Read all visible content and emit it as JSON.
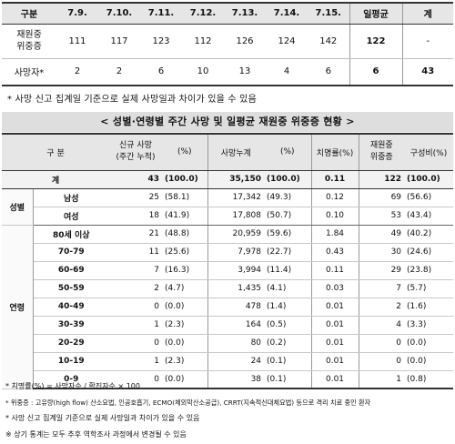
{
  "top_table": {
    "header": [
      "구분",
      "7.9.",
      "7.10.",
      "7.11.",
      "7.12.",
      "7.13.",
      "7.14.",
      "7.15.",
      "일평균",
      "계"
    ],
    "rows": [
      {
        "label": "재원중\n위중증",
        "values": [
          "111",
          "117",
          "123",
          "112",
          "126",
          "124",
          "142"
        ],
        "avg": "122",
        "total": "-"
      },
      {
        "label": "사망자*",
        "values": [
          "2",
          "2",
          "6",
          "10",
          "13",
          "4",
          "6"
        ],
        "avg": "6",
        "total": "43"
      }
    ]
  },
  "note1": "* 사망 신고 집계일 기준으로 실제 사망일과 차이가 있을 수 있음",
  "title": "< 성별·연령별 주간 사망 및 일평균 재원중 위중증 현황 >",
  "main_table": {
    "header": {
      "category": "구 분",
      "new_deaths": "신규 사망\n(주간 누적)",
      "new_deaths_pct": "(%)",
      "cum_deaths": "사망누계",
      "cum_deaths_pct": "(%)",
      "cfr": "치명률(%)",
      "severe": "재원중\n위중증",
      "composition": "구성비(%)"
    },
    "total": {
      "label": "계",
      "new": "43",
      "new_pct": "(100.0)",
      "cum": "35,150",
      "cum_pct": "(100.0)",
      "cfr": "0.11",
      "severe": "122",
      "comp": "(100.0)"
    },
    "sex_group": "성별",
    "sex": [
      {
        "label": "남성",
        "new": "25",
        "new_pct": "(58.1)",
        "cum": "17,342",
        "cum_pct": "(49.3)",
        "cfr": "0.12",
        "severe": "69",
        "comp": "(56.6)"
      },
      {
        "label": "여성",
        "new": "18",
        "new_pct": "(41.9)",
        "cum": "17,808",
        "cum_pct": "(50.7)",
        "cfr": "0.10",
        "severe": "53",
        "comp": "(43.4)"
      }
    ],
    "age_group": "연령",
    "age": [
      {
        "label": "80세 이상",
        "new": "21",
        "new_pct": "(48.8)",
        "cum": "20,959",
        "cum_pct": "(59.6)",
        "cfr": "1.84",
        "severe": "49",
        "comp": "(40.2)"
      },
      {
        "label": "70-79",
        "new": "11",
        "new_pct": "(25.6)",
        "cum": "7,978",
        "cum_pct": "(22.7)",
        "cfr": "0.43",
        "severe": "30",
        "comp": "(24.6)"
      },
      {
        "label": "60-69",
        "new": "7",
        "new_pct": "(16.3)",
        "cum": "3,994",
        "cum_pct": "(11.4)",
        "cfr": "0.11",
        "severe": "29",
        "comp": "(23.8)"
      },
      {
        "label": "50-59",
        "new": "2",
        "new_pct": "(4.7)",
        "cum": "1,435",
        "cum_pct": "(4.1)",
        "cfr": "0.03",
        "severe": "7",
        "comp": "(5.7)"
      },
      {
        "label": "40-49",
        "new": "0",
        "new_pct": "(0.0)",
        "cum": "478",
        "cum_pct": "(1.4)",
        "cfr": "0.01",
        "severe": "2",
        "comp": "(1.6)"
      },
      {
        "label": "30-39",
        "new": "1",
        "new_pct": "(2.3)",
        "cum": "164",
        "cum_pct": "(0.5)",
        "cfr": "0.01",
        "severe": "4",
        "comp": "(3.3)"
      },
      {
        "label": "20-29",
        "new": "0",
        "new_pct": "(0.0)",
        "cum": "80",
        "cum_pct": "(0.2)",
        "cfr": "0.01",
        "severe": "0",
        "comp": "(0.0)"
      },
      {
        "label": "10-19",
        "new": "1",
        "new_pct": "(2.3)",
        "cum": "24",
        "cum_pct": "(0.1)",
        "cfr": "0.01",
        "severe": "0",
        "comp": "(0.0)"
      },
      {
        "label": "0-9",
        "new": "0",
        "new_pct": "(0.0)",
        "cum": "38",
        "cum_pct": "(0.1)",
        "cfr": "0.01",
        "severe": "1",
        "comp": "(0.8)"
      }
    ]
  },
  "notes": [
    "* 치명률(%) = 사망자수 / 확진자수 × 100",
    "* 위중증 : 고유량(high flow) 산소요법, 인공호흡기, ECMO(체외막산소공급), CRRT(지속적신대체요법) 등으로 격리 치료 중인 환자",
    "* 사망 신고 집계일 기준으로 실제 사망일과 차이가 있을 수 있음",
    "※ 상기 통계는 모두 추후 역학조사 과정에서 변경될 수 있음"
  ]
}
